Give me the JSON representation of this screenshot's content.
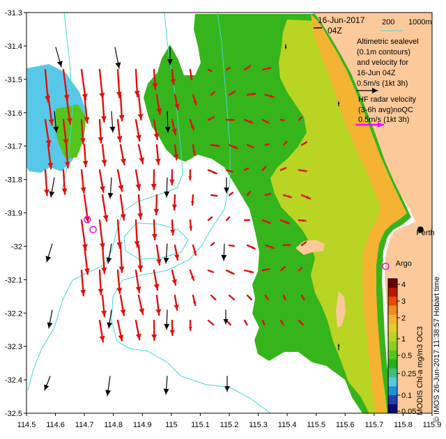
{
  "header": {
    "date": "16-Jun-2017",
    "time": "04Z"
  },
  "depth_legend": {
    "labels": [
      "200",
      "1000m"
    ],
    "color": "#40d8d8"
  },
  "legend": {
    "altimetry_lines": [
      "Altimetric sealevel",
      "(0.1m contours)",
      "and velocity for",
      "16-Jun 04Z",
      "0.5m/s (1kt 3h)"
    ],
    "radar_lines": [
      "HF radar velocity",
      "(3-6h avg)noQC",
      "0.5m/s (1kt 3h)"
    ],
    "altimetry_color": "#000000",
    "radar_color": "#ff00ff"
  },
  "places": [
    {
      "name": "Perth",
      "lon": 115.86,
      "lat": -31.95
    },
    {
      "name": "Argo",
      "lon": 115.75,
      "lat": -32.05
    }
  ],
  "argo_markers": [
    {
      "lon": 114.71,
      "lat": -31.92
    },
    {
      "lon": 114.73,
      "lat": -31.95
    },
    {
      "lon": 115.74,
      "lat": -32.06
    }
  ],
  "colorbar": {
    "title": "MODIS Chl-a mg/m3 OC3",
    "ticks": [
      "4",
      "3",
      "2",
      "1",
      "0.5",
      "0.25",
      "0.1",
      "0.05"
    ],
    "colors": [
      "#6b0000",
      "#b81800",
      "#e84a00",
      "#f38a1e",
      "#f4b332",
      "#e2cd2c",
      "#b9d422",
      "#8ccf22",
      "#55c51c",
      "#22b019",
      "#3fbd83",
      "#58c8dc",
      "#1f8fd8",
      "#1f3fb0",
      "#0a0a70"
    ]
  },
  "credit": "© IMOS 26-Jun-2017 11:38:57 Hobart time",
  "colors": {
    "land": "#fcc99a",
    "open_ocean": "#58c8e8",
    "current_arrow": "#e01010",
    "altimetry_arrow": "#000000",
    "contour": "#40d8d8"
  },
  "map": {
    "xlim": [
      114.5,
      115.9
    ],
    "ylim": [
      -32.5,
      -31.3
    ],
    "x_ticks": [
      "114.5",
      "114.6",
      "114.7",
      "114.8",
      "114.9",
      "115",
      "115.1",
      "115.2",
      "115.3",
      "115.4",
      "115.5",
      "115.6",
      "115.7",
      "115.8",
      "115.9"
    ],
    "y_ticks": [
      "-31.3",
      "-31.4",
      "-31.5",
      "-31.6",
      "-31.7",
      "-31.8",
      "-31.9",
      "-32",
      "-32.1",
      "-32.2",
      "-32.3",
      "-32.4",
      "-32.5"
    ]
  }
}
